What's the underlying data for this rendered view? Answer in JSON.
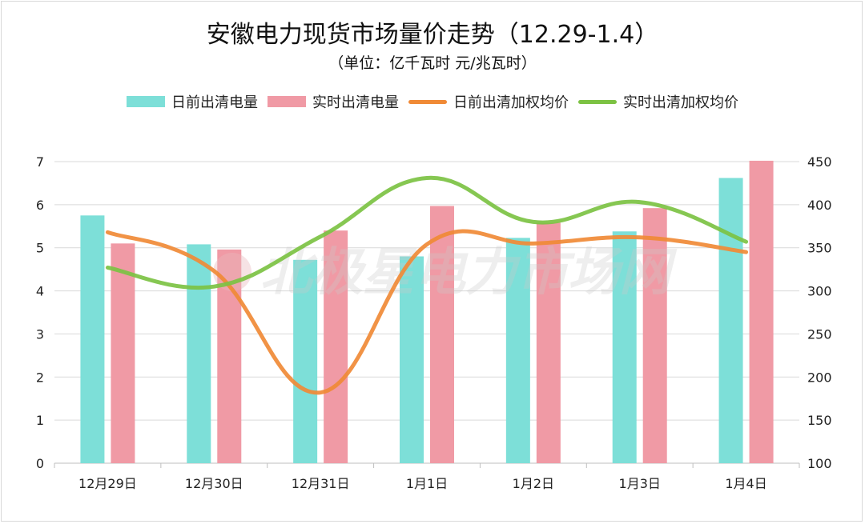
{
  "chart_data": {
    "type": "bar",
    "title": "安徽电力现货市场量价走势（12.29-1.4）",
    "subtitle": "（单位：亿千瓦时 元/兆瓦时）",
    "categories": [
      "12月29日",
      "12月30日",
      "12月31日",
      "1月1日",
      "1月2日",
      "1月3日",
      "1月4日"
    ],
    "series": [
      {
        "name": "日前出清电量",
        "kind": "bar",
        "axis": "left",
        "color": "#7ddfd8",
        "values": [
          5.75,
          5.08,
          4.72,
          4.8,
          5.23,
          5.38,
          6.62
        ]
      },
      {
        "name": "实时出清电量",
        "kind": "bar",
        "axis": "left",
        "color": "#f09aa5",
        "values": [
          5.1,
          4.96,
          5.4,
          5.97,
          5.58,
          5.92,
          7.02
        ]
      },
      {
        "name": "日前出清加权均价",
        "kind": "line",
        "axis": "right",
        "color": "#f08a36",
        "values": [
          368,
          323,
          182,
          354,
          355,
          362,
          345
        ]
      },
      {
        "name": "实时出清加权均价",
        "kind": "line",
        "axis": "right",
        "color": "#7cc243",
        "values": [
          327,
          305,
          363,
          431,
          380,
          403,
          357
        ]
      }
    ],
    "y_left": {
      "min": 0,
      "max": 7,
      "ticks": [
        "0",
        "1",
        "2",
        "3",
        "4",
        "5",
        "6",
        "7"
      ]
    },
    "y_right": {
      "min": 100,
      "max": 450,
      "ticks": [
        "100",
        "150",
        "200",
        "250",
        "300",
        "350",
        "400",
        "450"
      ]
    },
    "grid": true,
    "legend_position": "top-center"
  },
  "watermark": {
    "text": "北极星电力市场网",
    "icon": "globe-icon"
  }
}
